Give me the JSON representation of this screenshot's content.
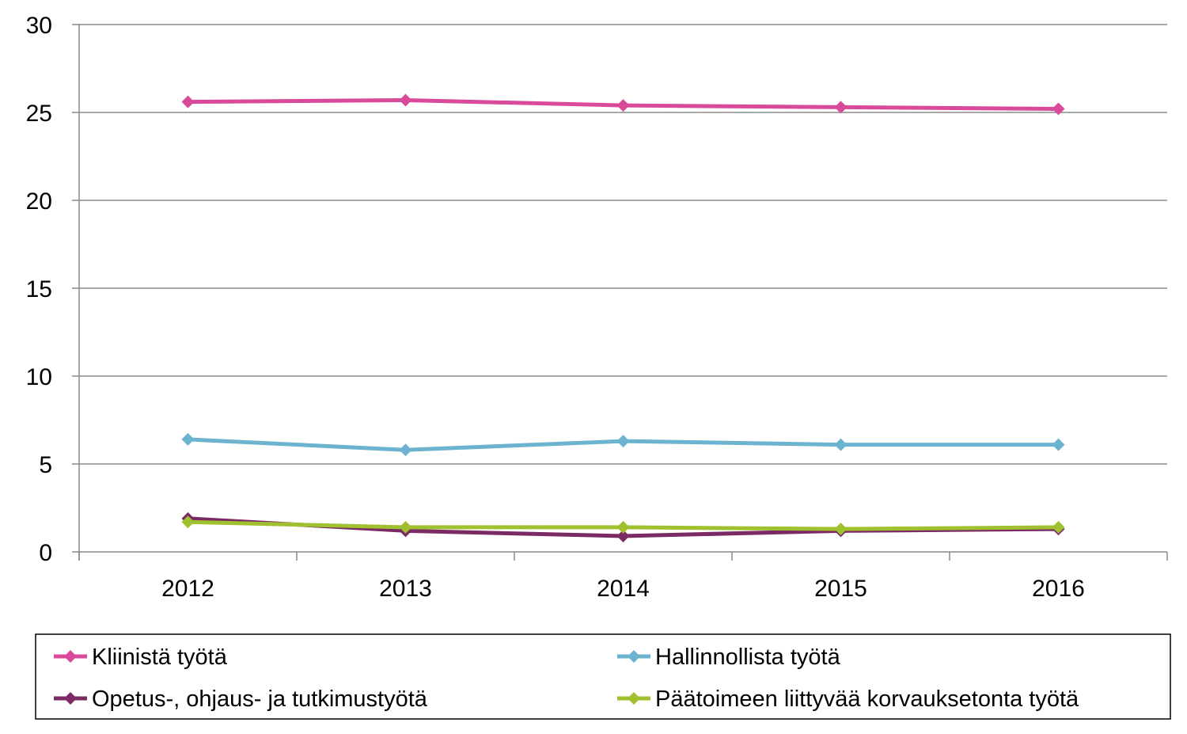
{
  "chart_data": {
    "type": "line",
    "title": "",
    "xlabel": "",
    "ylabel": "",
    "categories": [
      "2012",
      "2013",
      "2014",
      "2015",
      "2016"
    ],
    "ylim": [
      0,
      30
    ],
    "yticks": [
      0,
      5,
      10,
      15,
      20,
      25,
      30
    ],
    "grid": true,
    "legend_position": "bottom",
    "series": [
      {
        "name": "Kliinistä työtä",
        "color": "#d94b9a",
        "marker": "diamond",
        "values": [
          25.6,
          25.7,
          25.4,
          25.3,
          25.2
        ]
      },
      {
        "name": "Hallinnollista työtä",
        "color": "#6bb3cf",
        "marker": "diamond",
        "values": [
          6.4,
          5.8,
          6.3,
          6.1,
          6.1
        ]
      },
      {
        "name": "Opetus-, ohjaus- ja tutkimustyötä",
        "color": "#7b2a63",
        "marker": "diamond",
        "values": [
          1.9,
          1.2,
          0.9,
          1.2,
          1.3
        ]
      },
      {
        "name": "Päätoimeen liittyvää korvauksetonta työtä",
        "color": "#a0c12f",
        "marker": "diamond",
        "values": [
          1.7,
          1.4,
          1.4,
          1.3,
          1.4
        ]
      }
    ]
  }
}
